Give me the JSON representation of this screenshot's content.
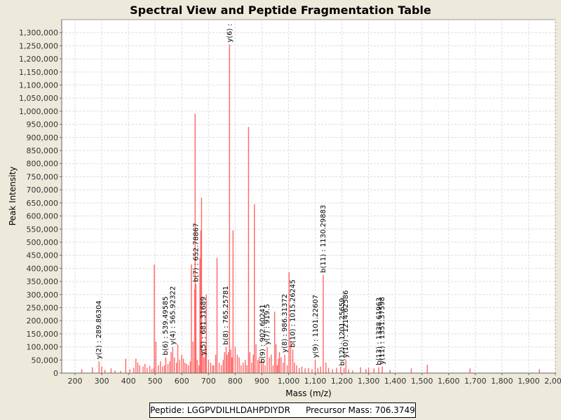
{
  "chart_data": {
    "type": "bar",
    "title": "Spectral View and Peptide Fragmentation Table",
    "xlabel": "Mass (m/z)",
    "ylabel": "Peak Intensity",
    "xlim": [
      150,
      2000
    ],
    "ylim": [
      0,
      1350000
    ],
    "xticks": [
      200,
      300,
      400,
      500,
      600,
      700,
      800,
      900,
      1000,
      1100,
      1200,
      1300,
      1400,
      1500,
      1600,
      1700,
      1800,
      1900,
      2000
    ],
    "yticks": [
      0,
      50000,
      100000,
      150000,
      200000,
      250000,
      300000,
      350000,
      400000,
      450000,
      500000,
      550000,
      600000,
      650000,
      700000,
      750000,
      800000,
      850000,
      900000,
      950000,
      1000000,
      1050000,
      1100000,
      1150000,
      1200000,
      1250000,
      1300000
    ],
    "series_color": "#ff6666",
    "peaks": [
      [
        225,
        15000
      ],
      [
        265,
        22000
      ],
      [
        290,
        45000
      ],
      [
        300,
        25000
      ],
      [
        312,
        12000
      ],
      [
        335,
        18000
      ],
      [
        350,
        10000
      ],
      [
        370,
        8000
      ],
      [
        390,
        55000
      ],
      [
        405,
        15000
      ],
      [
        420,
        20000
      ],
      [
        428,
        55000
      ],
      [
        435,
        40000
      ],
      [
        442,
        30000
      ],
      [
        455,
        25000
      ],
      [
        462,
        35000
      ],
      [
        470,
        20000
      ],
      [
        480,
        28000
      ],
      [
        488,
        15000
      ],
      [
        495,
        20000
      ],
      [
        497,
        415000
      ],
      [
        503,
        120000
      ],
      [
        512,
        30000
      ],
      [
        520,
        45000
      ],
      [
        528,
        25000
      ],
      [
        535,
        30000
      ],
      [
        540,
        60000
      ],
      [
        548,
        35000
      ],
      [
        555,
        45000
      ],
      [
        560,
        80000
      ],
      [
        566,
        100000
      ],
      [
        572,
        60000
      ],
      [
        580,
        40000
      ],
      [
        585,
        110000
      ],
      [
        592,
        50000
      ],
      [
        600,
        70000
      ],
      [
        606,
        55000
      ],
      [
        612,
        40000
      ],
      [
        618,
        35000
      ],
      [
        625,
        30000
      ],
      [
        632,
        45000
      ],
      [
        636,
        415000
      ],
      [
        642,
        120000
      ],
      [
        648,
        320000
      ],
      [
        650,
        990000
      ],
      [
        653,
        340000
      ],
      [
        658,
        50000
      ],
      [
        664,
        30000
      ],
      [
        668,
        440000
      ],
      [
        671,
        545000
      ],
      [
        674,
        670000
      ],
      [
        678,
        80000
      ],
      [
        683,
        60000
      ],
      [
        688,
        100000
      ],
      [
        692,
        300000
      ],
      [
        700,
        50000
      ],
      [
        708,
        40000
      ],
      [
        715,
        30000
      ],
      [
        720,
        30000
      ],
      [
        727,
        70000
      ],
      [
        732,
        440000
      ],
      [
        740,
        40000
      ],
      [
        748,
        30000
      ],
      [
        755,
        50000
      ],
      [
        760,
        80000
      ],
      [
        766,
        100000
      ],
      [
        770,
        70000
      ],
      [
        775,
        80000
      ],
      [
        779,
        1255000
      ],
      [
        784,
        90000
      ],
      [
        788,
        60000
      ],
      [
        792,
        545000
      ],
      [
        800,
        100000
      ],
      [
        808,
        70000
      ],
      [
        815,
        60000
      ],
      [
        822,
        30000
      ],
      [
        830,
        40000
      ],
      [
        838,
        50000
      ],
      [
        844,
        30000
      ],
      [
        850,
        940000
      ],
      [
        855,
        80000
      ],
      [
        862,
        40000
      ],
      [
        868,
        70000
      ],
      [
        872,
        645000
      ],
      [
        878,
        110000
      ],
      [
        885,
        50000
      ],
      [
        890,
        60000
      ],
      [
        898,
        55000
      ],
      [
        905,
        40000
      ],
      [
        912,
        30000
      ],
      [
        920,
        100000
      ],
      [
        928,
        60000
      ],
      [
        935,
        70000
      ],
      [
        942,
        30000
      ],
      [
        948,
        235000
      ],
      [
        953,
        110000
      ],
      [
        958,
        30000
      ],
      [
        962,
        55000
      ],
      [
        966,
        80000
      ],
      [
        972,
        60000
      ],
      [
        980,
        40000
      ],
      [
        986,
        70000
      ],
      [
        995,
        30000
      ],
      [
        1002,
        385000
      ],
      [
        1008,
        120000
      ],
      [
        1016,
        90000
      ],
      [
        1022,
        40000
      ],
      [
        1030,
        30000
      ],
      [
        1040,
        20000
      ],
      [
        1050,
        25000
      ],
      [
        1062,
        18000
      ],
      [
        1075,
        20000
      ],
      [
        1088,
        15000
      ],
      [
        1100,
        50000
      ],
      [
        1110,
        20000
      ],
      [
        1120,
        25000
      ],
      [
        1130,
        375000
      ],
      [
        1140,
        40000
      ],
      [
        1150,
        20000
      ],
      [
        1165,
        15000
      ],
      [
        1180,
        20000
      ],
      [
        1195,
        25000
      ],
      [
        1208,
        20000
      ],
      [
        1215,
        50000
      ],
      [
        1225,
        15000
      ],
      [
        1240,
        10000
      ],
      [
        1270,
        22000
      ],
      [
        1290,
        15000
      ],
      [
        1300,
        20000
      ],
      [
        1320,
        18000
      ],
      [
        1338,
        22000
      ],
      [
        1351,
        25000
      ],
      [
        1380,
        12000
      ],
      [
        1460,
        18000
      ],
      [
        1520,
        32000
      ],
      [
        1680,
        18000
      ],
      [
        1940,
        15000
      ]
    ],
    "annotations": [
      {
        "label": "y(2) : 289.86304",
        "x": 289.86,
        "y": 45000
      },
      {
        "label": "b(6) : 539.49585",
        "x": 539.5,
        "y": 60000
      },
      {
        "label": "y(4) : 565.92322",
        "x": 565.92,
        "y": 100000
      },
      {
        "label": "b(7) : 652.78867",
        "x": 652.79,
        "y": 340000
      },
      {
        "label": "y(5) : 681.31689",
        "x": 681.32,
        "y": 60000
      },
      {
        "label": "b(8) : 765.25781",
        "x": 765.26,
        "y": 100000
      },
      {
        "label": "y(6) :",
        "x": 779.0,
        "y": 1255000
      },
      {
        "label": "b(9) : 902.60241",
        "x": 902.6,
        "y": 30000
      },
      {
        "label": "y(7) : 919.5",
        "x": 919.5,
        "y": 100000
      },
      {
        "label": "y(8) : 986.31372",
        "x": 986.31,
        "y": 70000
      },
      {
        "label": "b(10) : 1015.26245",
        "x": 1015.26,
        "y": 90000
      },
      {
        "label": "y(9) : 1101.22607",
        "x": 1101.23,
        "y": 50000
      },
      {
        "label": "b(11) : 1130.29883",
        "x": 1130.3,
        "y": 375000
      },
      {
        "label": "b(12) : 1201.25659",
        "x": 1201.26,
        "y": 20000
      },
      {
        "label": "y(10) : 1214.62586",
        "x": 1214.63,
        "y": 50000
      },
      {
        "label": "b(13) : 1338.61963",
        "x": 1338.62,
        "y": 22000
      },
      {
        "label": "y(11) : 1351.37598",
        "x": 1351.38,
        "y": 25000
      }
    ]
  },
  "legend": {
    "peptide": "Peptide: LGGPVDILHLDAHPDIYDR",
    "precursor": "Precursor Mass: 706.3749"
  }
}
